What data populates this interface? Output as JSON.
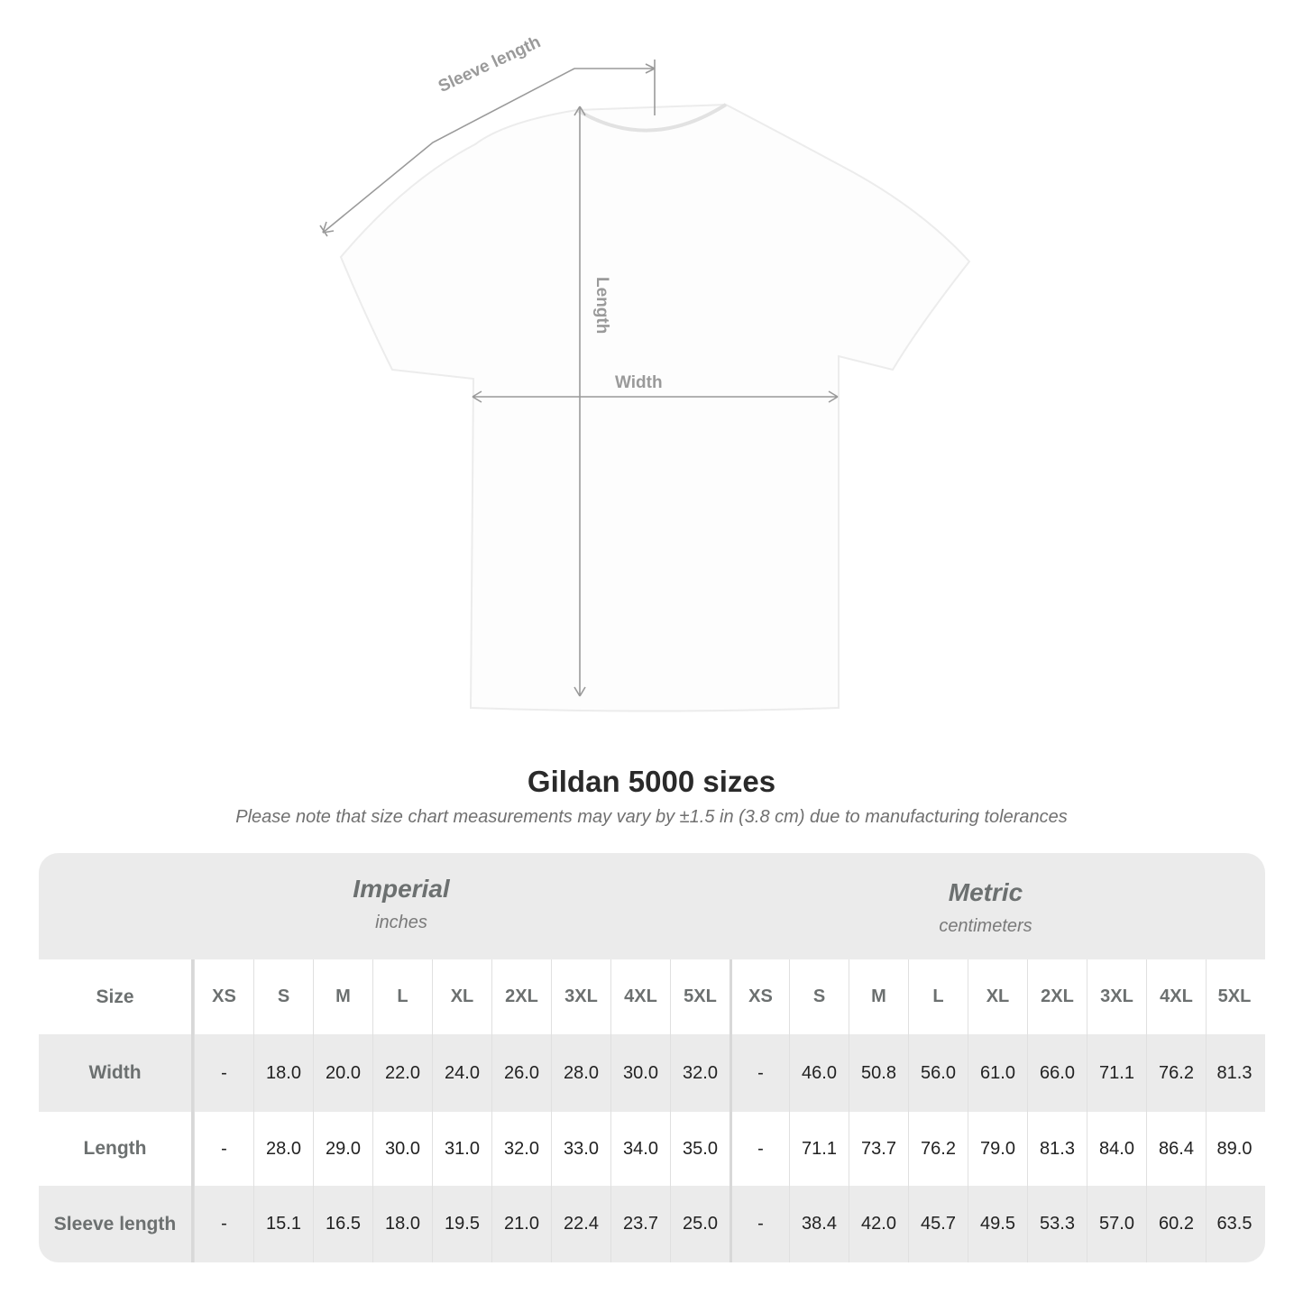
{
  "diagram": {
    "labels": {
      "sleeve": "Sleeve length",
      "length": "Length",
      "width": "Width"
    },
    "line_color": "#9a9a9a"
  },
  "title": "Gildan 5000 sizes",
  "note": "Please note that size chart measurements may vary by ±1.5 in (3.8 cm) due to manufacturing tolerances",
  "table": {
    "imperial": {
      "name": "Imperial",
      "unit": "inches"
    },
    "metric": {
      "name": "Metric",
      "unit": "centimeters"
    },
    "size_label": "Size",
    "sizes": [
      "XS",
      "S",
      "M",
      "L",
      "XL",
      "2XL",
      "3XL",
      "4XL",
      "5XL"
    ],
    "rows": [
      {
        "label": "Width",
        "imperial": [
          "-",
          "18.0",
          "20.0",
          "22.0",
          "24.0",
          "26.0",
          "28.0",
          "30.0",
          "32.0"
        ],
        "metric": [
          "-",
          "46.0",
          "50.8",
          "56.0",
          "61.0",
          "66.0",
          "71.1",
          "76.2",
          "81.3"
        ]
      },
      {
        "label": "Length",
        "imperial": [
          "-",
          "28.0",
          "29.0",
          "30.0",
          "31.0",
          "32.0",
          "33.0",
          "34.0",
          "35.0"
        ],
        "metric": [
          "-",
          "71.1",
          "73.7",
          "76.2",
          "79.0",
          "81.3",
          "84.0",
          "86.4",
          "89.0"
        ]
      },
      {
        "label": "Sleeve length",
        "imperial": [
          "-",
          "15.1",
          "16.5",
          "18.0",
          "19.5",
          "21.0",
          "22.4",
          "23.7",
          "25.0"
        ],
        "metric": [
          "-",
          "38.4",
          "42.0",
          "45.7",
          "49.5",
          "53.3",
          "57.0",
          "60.2",
          "63.5"
        ]
      }
    ],
    "header_bg": "#ebebeb"
  }
}
